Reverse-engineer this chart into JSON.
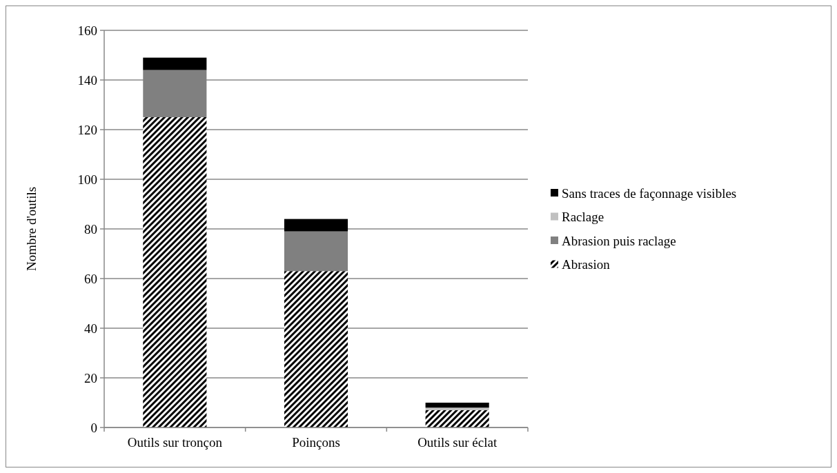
{
  "chart_data": {
    "type": "bar",
    "stacked": true,
    "ylabel": "Nombre d'outils",
    "categories": [
      "Outils sur tronçon",
      "Poinçons",
      "Outils sur éclat"
    ],
    "series": [
      {
        "name": "Abrasion",
        "color": "#000000",
        "values": [
          125,
          63,
          7
        ]
      },
      {
        "name": "Abrasion puis raclage",
        "color": "#808080",
        "values": [
          19,
          16,
          0
        ]
      },
      {
        "name": "Raclage",
        "color": "#c0c0c0",
        "values": [
          0,
          0,
          1
        ]
      },
      {
        "name": "Sans traces de façonnage visibles",
        "color": "#000000",
        "values": [
          5,
          5,
          2
        ]
      }
    ],
    "ylim": [
      0,
      160
    ],
    "yticks": [
      0,
      20,
      40,
      60,
      80,
      100,
      120,
      140,
      160
    ],
    "grid": "y",
    "legend": "right"
  }
}
